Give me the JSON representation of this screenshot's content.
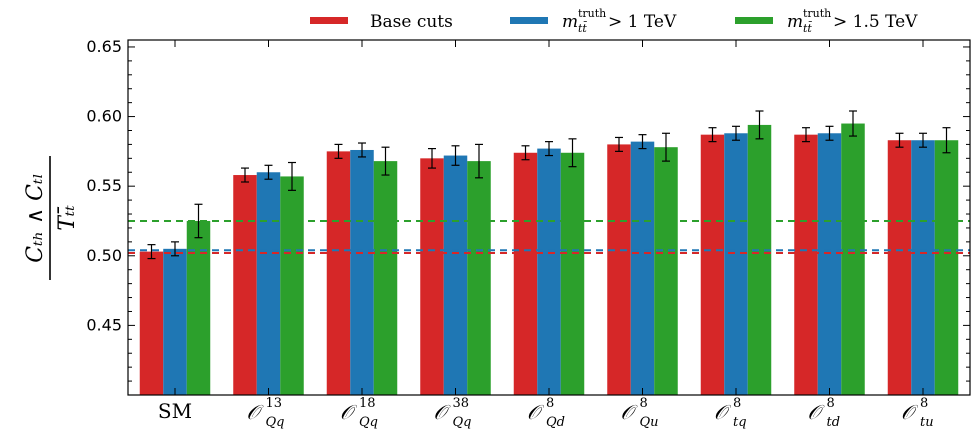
{
  "chart_data": {
    "type": "bar",
    "title": "",
    "xlabel": "",
    "ylabel": "C_{t_H} ∧ C_{t_L} / T_{t t̄}",
    "ylim": [
      0.4,
      0.655
    ],
    "yticks": [
      0.45,
      0.5,
      0.55,
      0.6,
      0.65
    ],
    "ytick_labels": [
      "0.45",
      "0.50",
      "0.55",
      "0.60",
      "0.65"
    ],
    "categories": [
      {
        "main": "SM",
        "sup": "",
        "sub": ""
      },
      {
        "main": "𝒪",
        "sup": "13",
        "sub": "Qq"
      },
      {
        "main": "𝒪",
        "sup": "18",
        "sub": "Qq"
      },
      {
        "main": "𝒪",
        "sup": "38",
        "sub": "Qq"
      },
      {
        "main": "𝒪",
        "sup": "8",
        "sub": "Qd"
      },
      {
        "main": "𝒪",
        "sup": "8",
        "sub": "Qu"
      },
      {
        "main": "𝒪",
        "sup": "8",
        "sub": "tq"
      },
      {
        "main": "𝒪",
        "sup": "8",
        "sub": "td"
      },
      {
        "main": "𝒪",
        "sup": "8",
        "sub": "tu"
      }
    ],
    "series": [
      {
        "name": "Base cuts",
        "legend": {
          "pre": "Base cuts",
          "sup": "",
          "sub": "",
          "post": ""
        },
        "color": "#d62728",
        "values": [
          0.503,
          0.558,
          0.575,
          0.57,
          0.574,
          0.58,
          0.587,
          0.587,
          0.583
        ],
        "errors": [
          0.005,
          0.005,
          0.005,
          0.007,
          0.005,
          0.005,
          0.005,
          0.005,
          0.005
        ],
        "reference": 0.502
      },
      {
        "name": "m_{tt̄}^{truth} > 1 TeV",
        "legend": {
          "pre": "m",
          "sup": "truth",
          "sub": "tt̄",
          "post": " > 1 TeV"
        },
        "color": "#1f77b4",
        "values": [
          0.505,
          0.56,
          0.576,
          0.572,
          0.577,
          0.582,
          0.588,
          0.588,
          0.583
        ],
        "errors": [
          0.005,
          0.005,
          0.005,
          0.007,
          0.005,
          0.005,
          0.005,
          0.005,
          0.005
        ],
        "reference": 0.504
      },
      {
        "name": "m_{tt̄}^{truth} > 1.5 TeV",
        "legend": {
          "pre": "m",
          "sup": "truth",
          "sub": "tt̄",
          "post": " > 1.5 TeV"
        },
        "color": "#2ca02c",
        "values": [
          0.525,
          0.557,
          0.568,
          0.568,
          0.574,
          0.578,
          0.594,
          0.595,
          0.583
        ],
        "errors": [
          0.012,
          0.01,
          0.01,
          0.012,
          0.01,
          0.01,
          0.01,
          0.009,
          0.009
        ],
        "reference": 0.525
      }
    ],
    "grid": false,
    "legend_position": "top (outside plot)"
  }
}
